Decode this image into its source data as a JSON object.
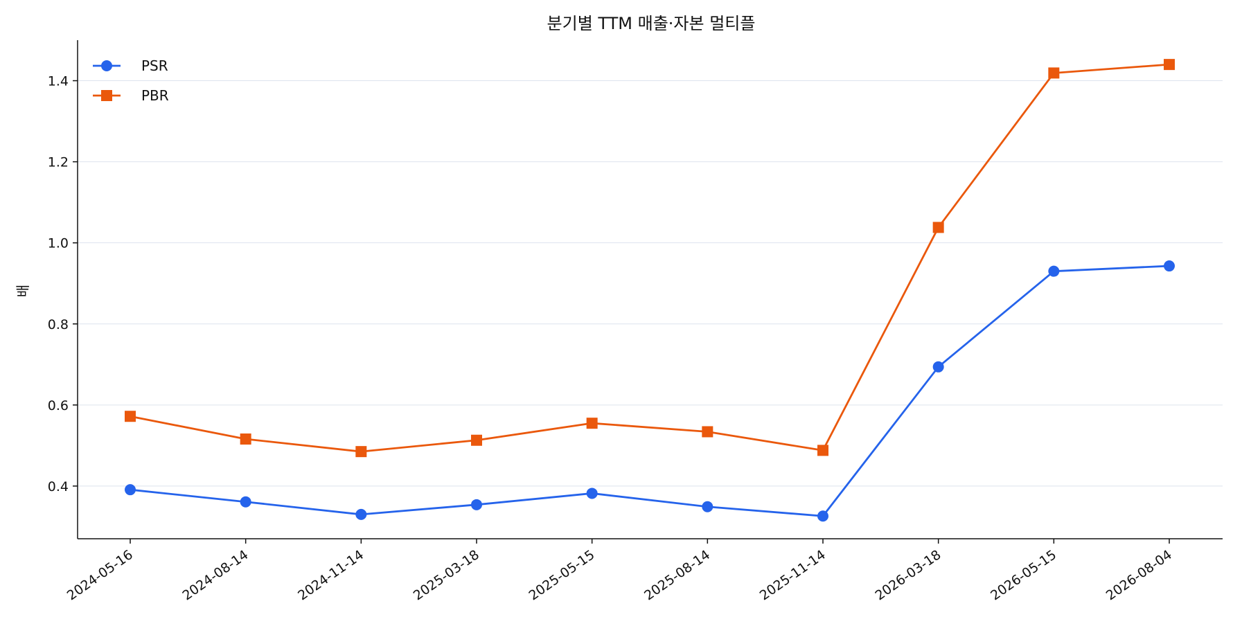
{
  "chart_data": {
    "type": "line",
    "title": "분기별 TTM 매출·자본 멀티플",
    "xlabel": "",
    "ylabel": "배",
    "categories": [
      "2024-05-16",
      "2024-08-14",
      "2024-11-14",
      "2025-03-18",
      "2025-05-15",
      "2025-08-14",
      "2025-11-14",
      "2026-03-18",
      "2026-05-15",
      "2026-08-04"
    ],
    "yticks": [
      "0.4",
      "0.6",
      "0.8",
      "1.0",
      "1.2",
      "1.4"
    ],
    "ylim": [
      0.27,
      1.5
    ],
    "grid": "horizontal",
    "legend_position": "top-left",
    "series": [
      {
        "name": "PSR",
        "color": "#2563eb",
        "marker": "circle",
        "values": [
          0.391,
          0.361,
          0.33,
          0.354,
          0.382,
          0.349,
          0.326,
          0.694,
          0.93,
          0.943
        ]
      },
      {
        "name": "PBR",
        "color": "#ea580c",
        "marker": "square",
        "values": [
          0.572,
          0.516,
          0.485,
          0.513,
          0.555,
          0.534,
          0.488,
          1.038,
          1.419,
          1.44
        ]
      }
    ]
  }
}
